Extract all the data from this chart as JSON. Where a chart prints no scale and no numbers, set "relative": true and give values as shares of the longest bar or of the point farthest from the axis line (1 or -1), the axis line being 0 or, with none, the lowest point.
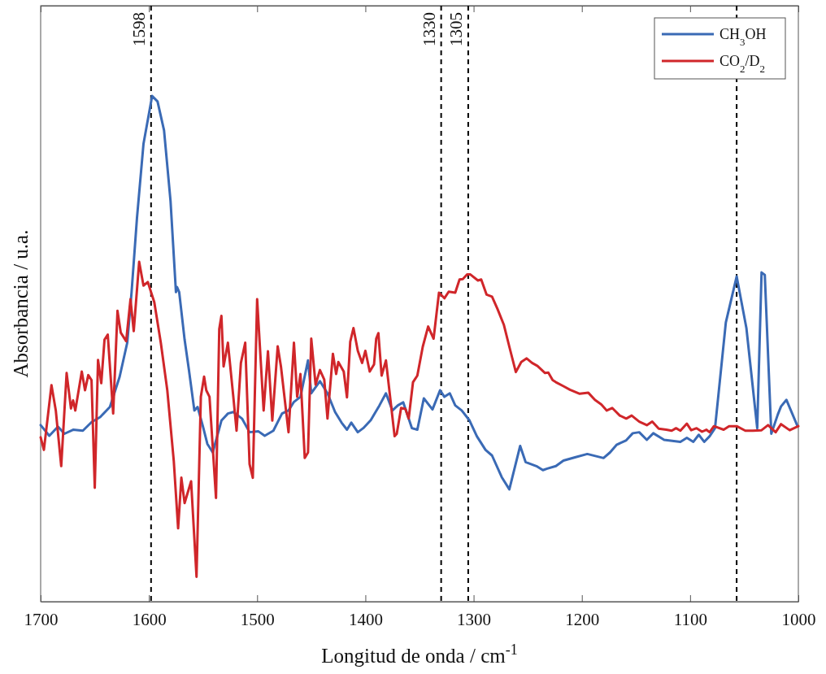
{
  "chart_data": {
    "type": "line",
    "relative": true,
    "xlabel": "Longitud de onda / cm$^{-1}$",
    "ylabel": "Absorbancia / u.a.",
    "xlim": [
      1700,
      1000
    ],
    "xticks": [
      1700,
      1600,
      1500,
      1400,
      1300,
      1200,
      1100,
      1000
    ],
    "legend": "top right",
    "ref_lines": [
      {
        "axis": "x",
        "value": 1598,
        "label": "1598",
        "color": "#000000",
        "line_style": "dashed"
      },
      {
        "axis": "x",
        "value": 1330,
        "label": "1330",
        "color": "#000000",
        "line_style": "dashed"
      },
      {
        "axis": "x",
        "value": 1305,
        "label": "1305",
        "color": "#000000",
        "line_style": "dashed"
      },
      {
        "axis": "x",
        "value": 1057,
        "color": "#000000",
        "line_style": "dashed"
      }
    ],
    "series": [
      {
        "name": "CH$_{3}$OH",
        "color": "#3a6ab5",
        "x": [
          1700,
          1692,
          1684,
          1678,
          1670,
          1661,
          1653,
          1645,
          1636,
          1627,
          1620,
          1616,
          1611,
          1605,
          1597,
          1592,
          1586,
          1580,
          1575,
          1574,
          1572,
          1567,
          1563,
          1558,
          1555,
          1550,
          1546,
          1541,
          1533,
          1527,
          1522,
          1514,
          1507,
          1499,
          1493,
          1485,
          1477,
          1471,
          1466,
          1460,
          1453,
          1450,
          1442,
          1435,
          1428,
          1422,
          1417,
          1413,
          1407,
          1402,
          1395,
          1387,
          1381,
          1375,
          1370,
          1365,
          1357,
          1352,
          1346,
          1338,
          1331,
          1327,
          1322,
          1317,
          1311,
          1304,
          1297,
          1289,
          1283,
          1274,
          1267,
          1257,
          1252,
          1242,
          1236,
          1232,
          1224,
          1217,
          1207,
          1195,
          1180,
          1174,
          1168,
          1159,
          1153,
          1147,
          1140,
          1134,
          1124,
          1109,
          1103,
          1097,
          1092,
          1087,
          1082,
          1077,
          1067,
          1057,
          1048,
          1038,
          1034,
          1031,
          1025,
          1019,
          1016,
          1011,
          1001
        ],
        "values": [
          0.349,
          0.328,
          0.346,
          0.332,
          0.34,
          0.338,
          0.355,
          0.365,
          0.385,
          0.445,
          0.512,
          0.612,
          0.759,
          0.905,
          1,
          0.989,
          0.932,
          0.792,
          0.612,
          0.622,
          0.612,
          0.518,
          0.458,
          0.378,
          0.385,
          0.346,
          0.312,
          0.295,
          0.358,
          0.372,
          0.375,
          0.362,
          0.335,
          0.337,
          0.328,
          0.338,
          0.372,
          0.378,
          0.395,
          0.405,
          0.477,
          0.412,
          0.436,
          0.412,
          0.375,
          0.354,
          0.34,
          0.354,
          0.335,
          0.343,
          0.359,
          0.388,
          0.412,
          0.378,
          0.388,
          0.394,
          0.343,
          0.34,
          0.402,
          0.38,
          0.418,
          0.405,
          0.412,
          0.388,
          0.378,
          0.359,
          0.327,
          0.3,
          0.289,
          0.246,
          0.222,
          0.308,
          0.276,
          0.268,
          0.26,
          0.263,
          0.268,
          0.279,
          0.285,
          0.292,
          0.284,
          0.295,
          0.31,
          0.319,
          0.333,
          0.335,
          0.32,
          0.333,
          0.32,
          0.316,
          0.324,
          0.316,
          0.33,
          0.316,
          0.327,
          0.343,
          0.552,
          0.643,
          0.541,
          0.343,
          0.651,
          0.646,
          0.332,
          0.37,
          0.386,
          0.399,
          0.348
        ]
      },
      {
        "name": "CO$_{2}$/D$_{2}$",
        "color": "#d0262a",
        "x": [
          1700,
          1697,
          1690,
          1686,
          1681,
          1676,
          1672,
          1670,
          1668,
          1662,
          1659,
          1656,
          1653,
          1650,
          1647,
          1644,
          1641,
          1638,
          1633,
          1629,
          1626,
          1621,
          1617,
          1614,
          1609,
          1605,
          1601,
          1595,
          1589,
          1583,
          1577,
          1573,
          1570,
          1567,
          1561,
          1556,
          1552,
          1549,
          1547,
          1544,
          1538,
          1535,
          1533,
          1531,
          1527,
          1522,
          1519,
          1515,
          1511,
          1507,
          1504,
          1500,
          1494,
          1490,
          1486,
          1481,
          1478,
          1471,
          1466,
          1463,
          1460,
          1456,
          1453,
          1450,
          1446,
          1442,
          1438,
          1435,
          1430,
          1427,
          1425,
          1420,
          1417,
          1414,
          1411,
          1407,
          1403,
          1400,
          1396,
          1392,
          1390,
          1388,
          1385,
          1381,
          1373,
          1371,
          1367,
          1363,
          1360,
          1356,
          1352,
          1347,
          1342,
          1337,
          1332,
          1327,
          1323,
          1317,
          1313,
          1310,
          1306,
          1303,
          1296,
          1293,
          1288,
          1283,
          1278,
          1272,
          1267,
          1261,
          1256,
          1251,
          1246,
          1241,
          1234,
          1231,
          1227,
          1224,
          1217,
          1211,
          1202,
          1194,
          1188,
          1182,
          1177,
          1172,
          1165,
          1159,
          1154,
          1147,
          1140,
          1135,
          1129,
          1122,
          1117,
          1113,
          1109,
          1103,
          1099,
          1094,
          1089,
          1085,
          1082,
          1078,
          1069,
          1064,
          1057,
          1049,
          1042,
          1034,
          1028,
          1021,
          1016,
          1008,
          1000
        ],
        "values": [
          0.325,
          0.3,
          0.428,
          0.378,
          0.268,
          0.452,
          0.382,
          0.398,
          0.378,
          0.455,
          0.418,
          0.448,
          0.438,
          0.225,
          0.478,
          0.432,
          0.518,
          0.528,
          0.372,
          0.575,
          0.532,
          0.515,
          0.598,
          0.535,
          0.672,
          0.625,
          0.632,
          0.592,
          0.512,
          0.418,
          0.278,
          0.145,
          0.245,
          0.195,
          0.238,
          0.049,
          0.405,
          0.445,
          0.418,
          0.405,
          0.205,
          0.539,
          0.565,
          0.465,
          0.512,
          0.405,
          0.338,
          0.472,
          0.512,
          0.272,
          0.245,
          0.598,
          0.378,
          0.495,
          0.358,
          0.505,
          0.465,
          0.335,
          0.512,
          0.405,
          0.45,
          0.284,
          0.295,
          0.52,
          0.429,
          0.458,
          0.439,
          0.362,
          0.49,
          0.45,
          0.474,
          0.455,
          0.404,
          0.514,
          0.541,
          0.496,
          0.472,
          0.496,
          0.455,
          0.469,
          0.52,
          0.531,
          0.447,
          0.477,
          0.327,
          0.332,
          0.383,
          0.381,
          0.362,
          0.434,
          0.447,
          0.504,
          0.544,
          0.52,
          0.611,
          0.6,
          0.613,
          0.611,
          0.637,
          0.638,
          0.647,
          0.647,
          0.635,
          0.637,
          0.607,
          0.603,
          0.579,
          0.547,
          0.504,
          0.454,
          0.474,
          0.481,
          0.472,
          0.466,
          0.452,
          0.453,
          0.438,
          0.434,
          0.426,
          0.419,
          0.411,
          0.413,
          0.399,
          0.39,
          0.378,
          0.383,
          0.368,
          0.362,
          0.368,
          0.356,
          0.349,
          0.356,
          0.342,
          0.34,
          0.338,
          0.343,
          0.338,
          0.352,
          0.339,
          0.343,
          0.336,
          0.34,
          0.335,
          0.347,
          0.34,
          0.347,
          0.347,
          0.338,
          0.338,
          0.339,
          0.349,
          0.335,
          0.351,
          0.339,
          0.347
        ]
      }
    ]
  }
}
